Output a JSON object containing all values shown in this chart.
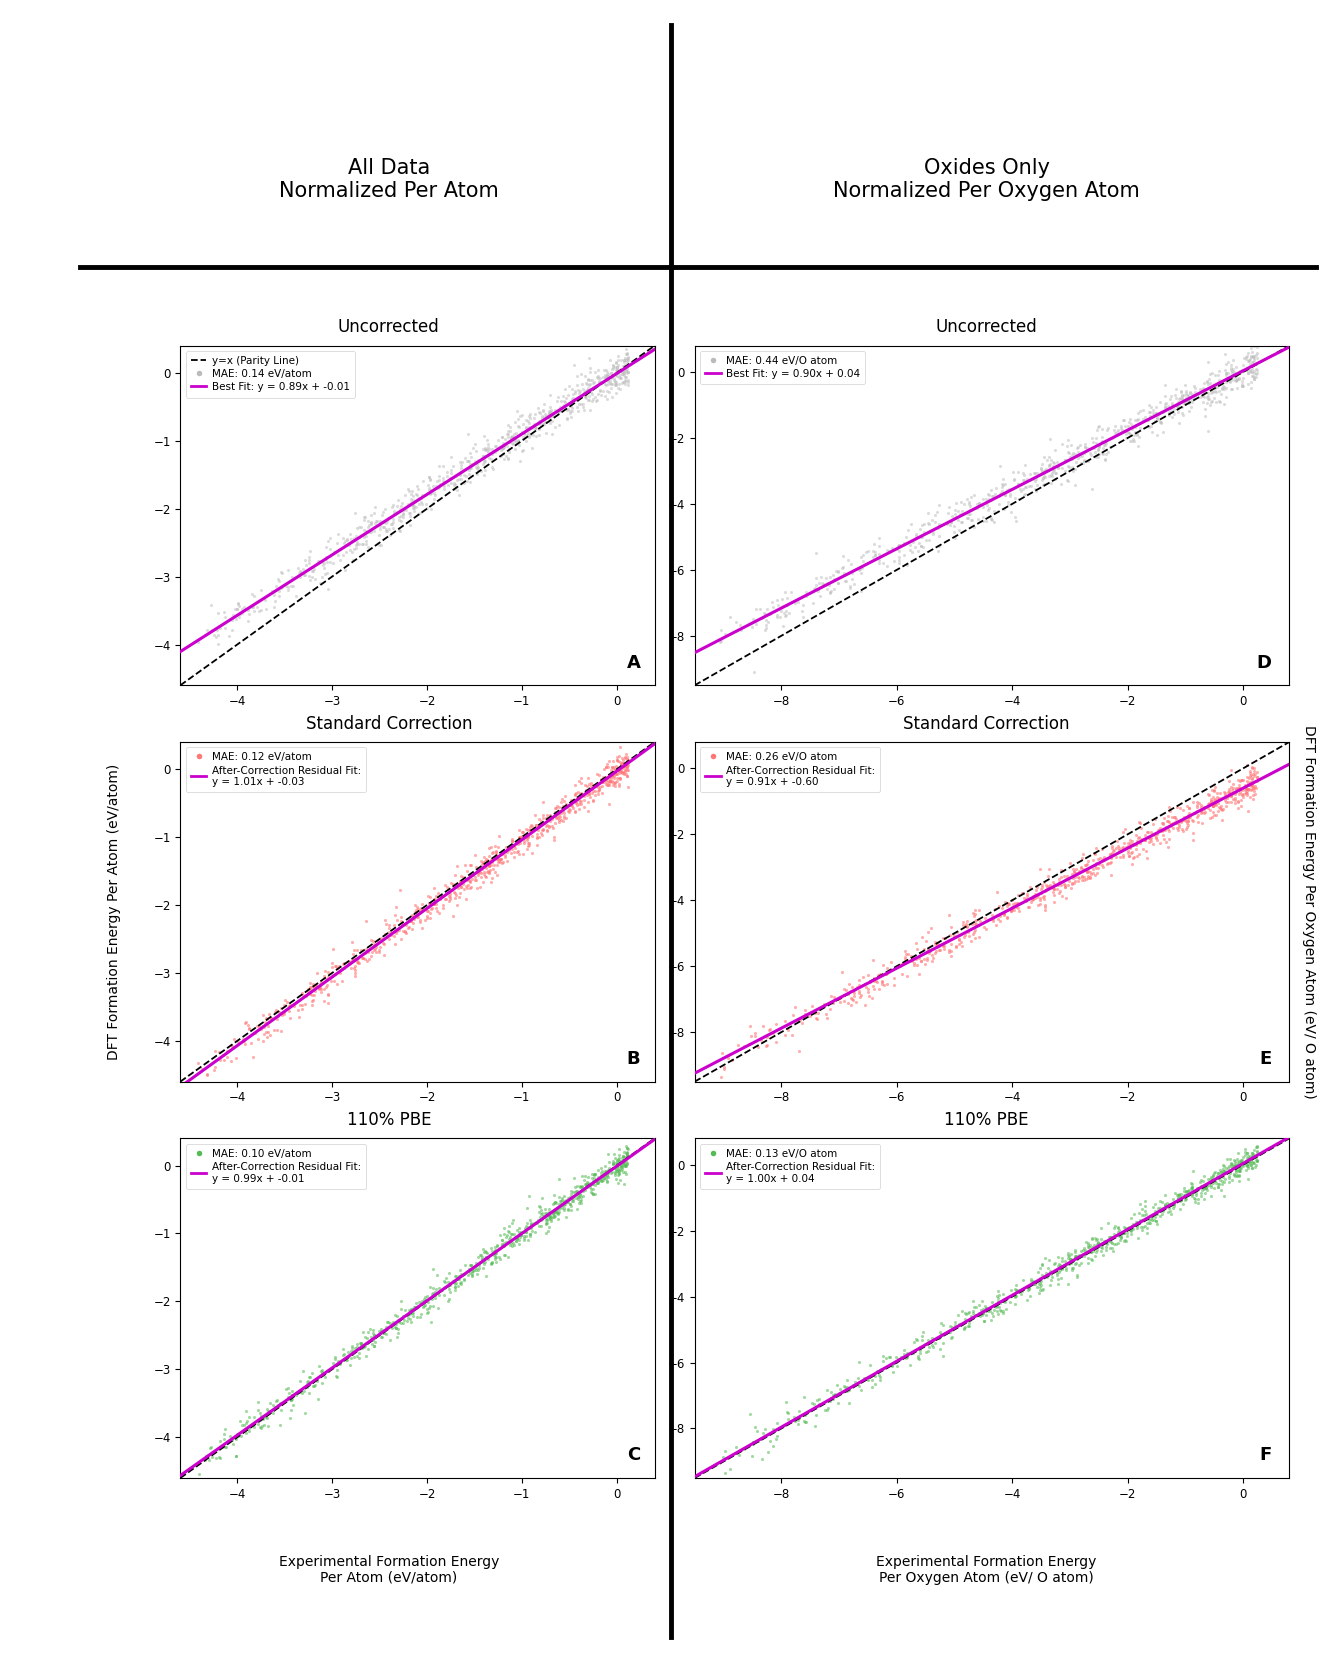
{
  "col_headers": [
    "All Data\nNormalized Per Atom",
    "Oxides Only\nNormalized Per Oxygen Atom"
  ],
  "row_titles": [
    "Uncorrected",
    "Standard Correction",
    "110% PBE"
  ],
  "panels": [
    {
      "label": "A",
      "xlim": [
        -4.6,
        0.4
      ],
      "ylim": [
        -4.6,
        0.4
      ],
      "xticks": [
        -4,
        -3,
        -2,
        -1,
        0
      ],
      "yticks": [
        -4,
        -3,
        -2,
        -1,
        0
      ],
      "scatter_color": "#bbbbbb",
      "scatter_alpha": 0.5,
      "scatter_size": 5,
      "fit_slope": 0.89,
      "fit_intercept": -0.01,
      "mae_text": "MAE: 0.14 eV/atom",
      "fit_text": "Best Fit: y = 0.89x + -0.01",
      "has_parity_legend": true,
      "spread": 0.12
    },
    {
      "label": "B",
      "xlim": [
        -4.6,
        0.4
      ],
      "ylim": [
        -4.6,
        0.4
      ],
      "xticks": [
        -4,
        -3,
        -2,
        -1,
        0
      ],
      "yticks": [
        -4,
        -3,
        -2,
        -1,
        0
      ],
      "scatter_color": "#ff7777",
      "scatter_alpha": 0.6,
      "scatter_size": 5,
      "fit_slope": 1.01,
      "fit_intercept": -0.03,
      "mae_text": "MAE: 0.12 eV/atom",
      "fit_text": "After-Correction Residual Fit:\ny = 1.01x + -0.03",
      "has_parity_legend": false,
      "spread": 0.1
    },
    {
      "label": "C",
      "xlim": [
        -4.6,
        0.4
      ],
      "ylim": [
        -4.6,
        0.4
      ],
      "xticks": [
        -4,
        -3,
        -2,
        -1,
        0
      ],
      "yticks": [
        -4,
        -3,
        -2,
        -1,
        0
      ],
      "scatter_color": "#55bb55",
      "scatter_alpha": 0.55,
      "scatter_size": 5,
      "fit_slope": 0.99,
      "fit_intercept": -0.01,
      "mae_text": "MAE: 0.10 eV/atom",
      "fit_text": "After-Correction Residual Fit:\ny = 0.99x + -0.01",
      "has_parity_legend": false,
      "spread": 0.09
    },
    {
      "label": "D",
      "xlim": [
        -9.5,
        0.8
      ],
      "ylim": [
        -9.5,
        0.8
      ],
      "xticks": [
        -8,
        -6,
        -4,
        -2,
        0
      ],
      "yticks": [
        -8,
        -6,
        -4,
        -2,
        0
      ],
      "scatter_color": "#bbbbbb",
      "scatter_alpha": 0.5,
      "scatter_size": 5,
      "fit_slope": 0.9,
      "fit_intercept": 0.04,
      "mae_text": "MAE: 0.44 eV/O atom",
      "fit_text": "Best Fit: y = 0.90x + 0.04",
      "has_parity_legend": false,
      "spread": 0.25
    },
    {
      "label": "E",
      "xlim": [
        -9.5,
        0.8
      ],
      "ylim": [
        -9.5,
        0.8
      ],
      "xticks": [
        -8,
        -6,
        -4,
        -2,
        0
      ],
      "yticks": [
        -8,
        -6,
        -4,
        -2,
        0
      ],
      "scatter_color": "#ff7777",
      "scatter_alpha": 0.6,
      "scatter_size": 5,
      "fit_slope": 0.91,
      "fit_intercept": -0.6,
      "mae_text": "MAE: 0.26 eV/O atom",
      "fit_text": "After-Correction Residual Fit:\ny = 0.91x + -0.60",
      "has_parity_legend": false,
      "spread": 0.2
    },
    {
      "label": "F",
      "xlim": [
        -9.5,
        0.8
      ],
      "ylim": [
        -9.5,
        0.8
      ],
      "xticks": [
        -8,
        -6,
        -4,
        -2,
        0
      ],
      "yticks": [
        -8,
        -6,
        -4,
        -2,
        0
      ],
      "scatter_color": "#55bb55",
      "scatter_alpha": 0.55,
      "scatter_size": 5,
      "fit_slope": 1.0,
      "fit_intercept": 0.04,
      "mae_text": "MAE: 0.13 eV/O atom",
      "fit_text": "After-Correction Residual Fit:\ny = 1.00x + 0.04",
      "has_parity_legend": false,
      "spread": 0.18
    }
  ],
  "ylabel_left": "DFT Formation Energy Per Atom (eV/atom)",
  "ylabel_right": "DFT Formation Energy Per Oxygen Atom (eV/ O atom)",
  "xlabel_left": "Experimental Formation Energy\nPer Atom (eV/atom)",
  "xlabel_right": "Experimental Formation Energy\nPer Oxygen Atom (eV/ O atom)",
  "fit_line_color": "#cc00cc",
  "parity_line_color": "#000000"
}
